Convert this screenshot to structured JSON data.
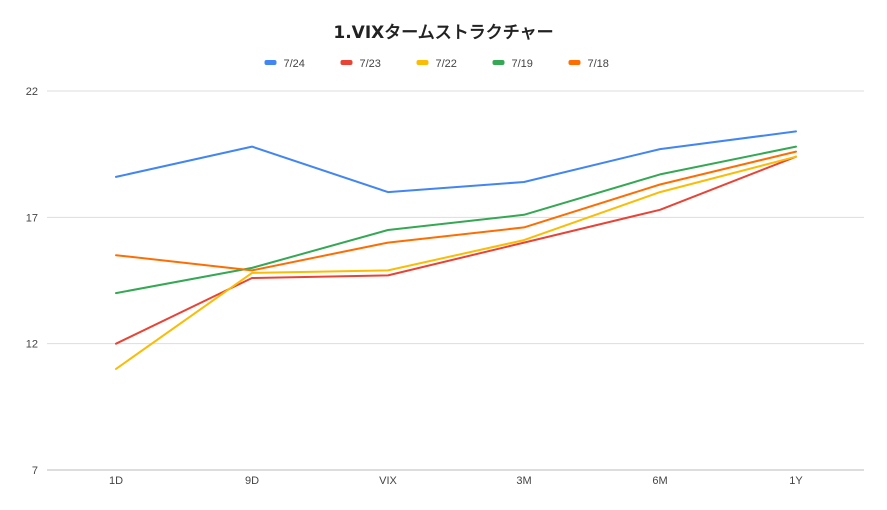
{
  "chart_data": {
    "type": "line",
    "title": "1.VIXタームストラクチャー",
    "xlabel": "",
    "ylabel": "",
    "categories": [
      "1D",
      "9D",
      "VIX",
      "3M",
      "6M",
      "1Y"
    ],
    "ylim": [
      7,
      22
    ],
    "yticks": [
      "7",
      "12",
      "17",
      "22"
    ],
    "grid": true,
    "legend_position": "top",
    "series": [
      {
        "name": "7/24",
        "color": "#4285F4",
        "values": [
          18.6,
          19.8,
          18.0,
          18.4,
          19.7,
          20.4
        ]
      },
      {
        "name": "7/23",
        "color": "#EA4335",
        "values": [
          12.0,
          14.6,
          14.7,
          16.0,
          17.3,
          19.4
        ]
      },
      {
        "name": "7/22",
        "color": "#FBBC04",
        "values": [
          11.0,
          14.8,
          14.9,
          16.1,
          18.0,
          19.4
        ]
      },
      {
        "name": "7/19",
        "color": "#34A853",
        "values": [
          14.0,
          15.0,
          16.5,
          17.1,
          18.7,
          19.8
        ]
      },
      {
        "name": "7/18",
        "color": "#FF6D01",
        "values": [
          15.5,
          14.9,
          16.0,
          16.6,
          18.3,
          19.6
        ]
      }
    ]
  }
}
